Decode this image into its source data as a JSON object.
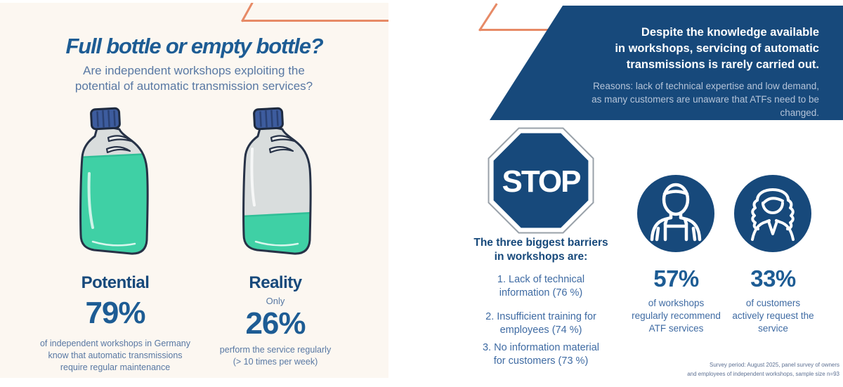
{
  "colors": {
    "navy": "#17497B",
    "heading_blue": "#1D5C94",
    "text_blue": "#3F6BA3",
    "muted_blue": "#5878A3",
    "banner_subtext": "#B5C4D9",
    "orange_accent": "#E78A66",
    "teal_liquid": "#3FD0A5",
    "cream_background": "#FCF7F1",
    "footnote_gray": "#5E7193"
  },
  "left_panel": {
    "title": "Full bottle or empty bottle?",
    "subtitle": "Are independent workshops exploiting the potential of automatic transmission services?",
    "subtitle_lines": [
      "Are independent workshops exploiting the",
      "potential of automatic transmission services?"
    ],
    "potential": {
      "label": "Potential",
      "value": "79%",
      "caption": "of independent workshops in Germany know that automatic transmissions require regular maintenance",
      "caption_lines": [
        "of independent workshops in Germany",
        "know that automatic transmissions",
        "require regular maintenance"
      ]
    },
    "reality": {
      "label": "Reality",
      "qualifier": "Only",
      "value": "26%",
      "caption": "perform the service regularly (> 10 times per week)",
      "caption_lines": [
        "perform the service regularly",
        "(> 10 times per week)"
      ]
    }
  },
  "right_panel": {
    "banner": {
      "heading": "Despite the knowledge available in workshops, servicing of automatic transmissions is rarely carried out.",
      "heading_lines": [
        "Despite the knowledge available",
        "in workshops, servicing of automatic",
        "transmissions is rarely carried out."
      ],
      "subtext": "Reasons: lack of technical expertise and low demand, as many customers are unaware that ATFs need to be changed.",
      "subtext_lines": [
        "Reasons: lack of technical expertise and low demand,",
        "as many customers are unaware that ATFs need to be changed."
      ]
    },
    "stop_sign_label": "STOP",
    "barriers": {
      "heading": "The three biggest barriers in workshops are:",
      "heading_lines": [
        "The three biggest barriers",
        "in workshops are:"
      ],
      "items": [
        "1. Lack of technical information (76 %)",
        "2. Insufficient training for employees (74 %)",
        "3. No information material for customers (73 %)"
      ],
      "items_lines": [
        [
          "1. Lack of technical",
          "information (76 %)"
        ],
        [
          "2. Insufficient training for",
          "employees (74 %)"
        ],
        [
          "3. No information material",
          "for customers (73 %)"
        ]
      ]
    },
    "stats": [
      {
        "icon": "mechanic-icon",
        "value": "57%",
        "caption": "of workshops regularly recommend ATF services",
        "caption_lines": [
          "of workshops",
          "regularly recommend",
          "ATF services"
        ]
      },
      {
        "icon": "woman-customer-icon",
        "value": "33%",
        "caption": "of customers actively request the service",
        "caption_lines": [
          "of customers",
          "actively request the",
          "service"
        ]
      }
    ],
    "footnote": "Survey period: August 2025, panel survey of owners and employees of independent workshops, sample size n=93",
    "footnote_lines": [
      "Survey period: August 2025, panel survey of owners",
      "and employees of independent workshops, sample size n=93"
    ]
  },
  "chart_data": {
    "type": "table",
    "title": "Full bottle or empty bottle? — automatic transmission (ATF) service survey",
    "columns": [
      "metric",
      "value_percent"
    ],
    "rows": [
      [
        "Potential: independent workshops in Germany that know automatic transmissions require regular maintenance",
        79
      ],
      [
        "Reality: workshops that perform the service regularly (> 10 times per week)",
        26
      ],
      [
        "Barrier 1: Lack of technical information",
        76
      ],
      [
        "Barrier 2: Insufficient training for employees",
        74
      ],
      [
        "Barrier 3: No information material for customers",
        73
      ],
      [
        "Workshops that regularly recommend ATF services",
        57
      ],
      [
        "Customers that actively request the service",
        33
      ]
    ],
    "notes": "Survey period: August 2025, panel survey of owners and employees of independent workshops, sample size n=93"
  }
}
